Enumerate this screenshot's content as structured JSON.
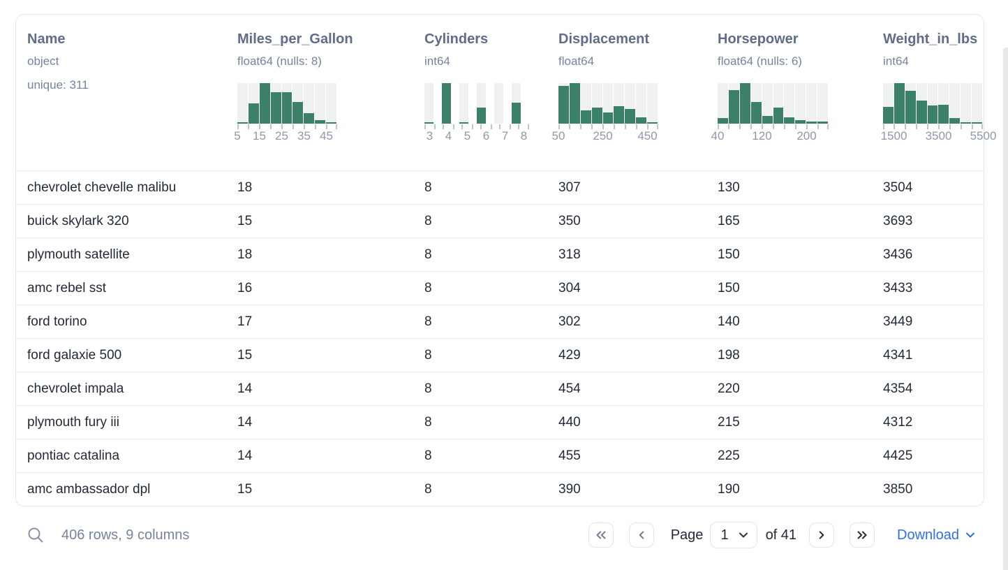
{
  "columns": [
    {
      "name": "Name",
      "dtype": "object",
      "extra": "unique: 311"
    },
    {
      "name": "Miles_per_Gallon",
      "dtype": "float64 (nulls: 8)"
    },
    {
      "name": "Cylinders",
      "dtype": "int64"
    },
    {
      "name": "Displacement",
      "dtype": "float64"
    },
    {
      "name": "Horsepower",
      "dtype": "float64 (nulls: 6)"
    },
    {
      "name": "Weight_in_lbs",
      "dtype": "int64"
    }
  ],
  "rows": [
    [
      "chevrolet chevelle malibu",
      "18",
      "8",
      "307",
      "130",
      "3504"
    ],
    [
      "buick skylark 320",
      "15",
      "8",
      "350",
      "165",
      "3693"
    ],
    [
      "plymouth satellite",
      "18",
      "8",
      "318",
      "150",
      "3436"
    ],
    [
      "amc rebel sst",
      "16",
      "8",
      "304",
      "150",
      "3433"
    ],
    [
      "ford torino",
      "17",
      "8",
      "302",
      "140",
      "3449"
    ],
    [
      "ford galaxie 500",
      "15",
      "8",
      "429",
      "198",
      "4341"
    ],
    [
      "chevrolet impala",
      "14",
      "8",
      "454",
      "220",
      "4354"
    ],
    [
      "plymouth fury iii",
      "14",
      "8",
      "440",
      "215",
      "4312"
    ],
    [
      "pontiac catalina",
      "14",
      "8",
      "455",
      "225",
      "4425"
    ],
    [
      "amc ambassador dpl",
      "15",
      "8",
      "390",
      "190",
      "3850"
    ]
  ],
  "chart_data": [
    {
      "type": "histogram",
      "column": "Miles_per_Gallon",
      "bin_start": 5,
      "bin_width": 5,
      "relative_heights": [
        0.03,
        0.5,
        1.0,
        0.77,
        0.77,
        0.53,
        0.26,
        0.08,
        0.03
      ],
      "tick_labels": [
        "5",
        "15",
        "25",
        "35",
        "45"
      ],
      "label_edge_indices": [
        0,
        2,
        4,
        6,
        8
      ],
      "label_mode": "edge",
      "spaced": false
    },
    {
      "type": "histogram",
      "column": "Cylinders",
      "bin_start": 3,
      "bin_width": 1,
      "relative_heights": [
        0.04,
        1.0,
        0.02,
        0.4,
        0.0,
        0.52
      ],
      "tick_labels": [
        "3",
        "4",
        "5",
        "6",
        "7",
        "8"
      ],
      "label_edge_indices": [],
      "label_mode": "center",
      "spaced": true
    },
    {
      "type": "histogram",
      "column": "Displacement",
      "bin_start": 50,
      "bin_width": 50,
      "relative_heights": [
        0.93,
        1.0,
        0.32,
        0.4,
        0.27,
        0.43,
        0.36,
        0.16,
        0.04
      ],
      "tick_labels": [
        "50",
        "250",
        "450"
      ],
      "label_edge_indices": [
        0,
        4,
        8
      ],
      "label_mode": "edge",
      "spaced": false
    },
    {
      "type": "histogram",
      "column": "Horsepower",
      "bin_start": 40,
      "bin_width": 20,
      "relative_heights": [
        0.14,
        0.83,
        1.0,
        0.54,
        0.19,
        0.4,
        0.16,
        0.08,
        0.05,
        0.05
      ],
      "tick_labels": [
        "40",
        "120",
        "200"
      ],
      "label_edge_indices": [
        0,
        4,
        8
      ],
      "label_mode": "edge",
      "spaced": false
    },
    {
      "type": "histogram",
      "column": "Weight_in_lbs",
      "bin_start": 1000,
      "bin_width": 500,
      "relative_heights": [
        0.42,
        1.0,
        0.81,
        0.57,
        0.44,
        0.47,
        0.14,
        0.02,
        0.02
      ],
      "tick_labels": [
        "1500",
        "3500",
        "5500"
      ],
      "label_edge_indices": [
        1,
        5,
        9
      ],
      "label_mode": "edge",
      "spaced": false
    }
  ],
  "footer": {
    "status": "406 rows, 9 columns",
    "page_label": "Page",
    "page_value": "1",
    "total_label": "of 41",
    "download_label": "Download"
  },
  "colors": {
    "histogram_bar": "#3a8168",
    "histogram_track": "#eef1f0",
    "accent_blue": "#2f6fed",
    "header_text": "#5f6c8a",
    "row_text": "#232a38"
  }
}
